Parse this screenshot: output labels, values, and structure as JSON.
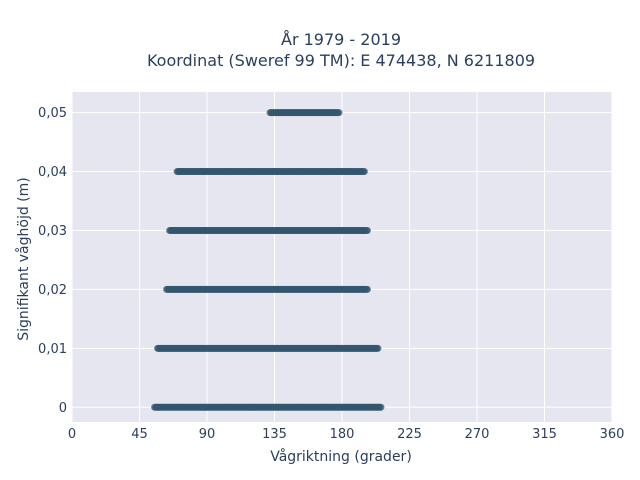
{
  "chart_data": {
    "type": "scatter",
    "title_line1": "År 1979 - 2019",
    "title_line2": "Koordinat (Sweref 99 TM): E 474438, N 6211809",
    "xlabel": "Vågriktning (grader)",
    "ylabel": "Signifikant våghöjd (m)",
    "xlim": [
      0,
      360
    ],
    "ylim": [
      -0.0025,
      0.0535
    ],
    "x_ticks": [
      0,
      45,
      90,
      135,
      180,
      225,
      270,
      315,
      360
    ],
    "x_tick_labels": [
      "0",
      "45",
      "90",
      "135",
      "180",
      "225",
      "270",
      "315",
      "360"
    ],
    "y_ticks": [
      0,
      0.01,
      0.02,
      0.03,
      0.04,
      0.05
    ],
    "y_tick_labels": [
      "0",
      "0,01",
      "0,02",
      "0,03",
      "0,04",
      "0,05"
    ],
    "grid": true,
    "marker_color": "#34576e",
    "plot_background": "#e5e6f0",
    "bands": [
      {
        "y": 0.0,
        "x_min": 55,
        "x_max": 206
      },
      {
        "y": 0.01,
        "x_min": 57,
        "x_max": 204
      },
      {
        "y": 0.02,
        "x_min": 63,
        "x_max": 197
      },
      {
        "y": 0.03,
        "x_min": 65,
        "x_max": 197
      },
      {
        "y": 0.04,
        "x_min": 70,
        "x_max": 195
      },
      {
        "y": 0.05,
        "x_min": 132,
        "x_max": 178
      }
    ]
  }
}
